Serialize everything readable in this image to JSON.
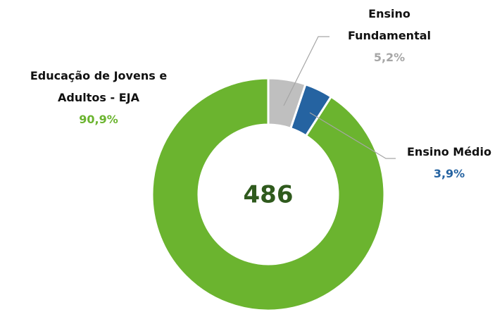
{
  "chart_data": {
    "type": "donut",
    "center_label": 486,
    "categories": [
      "Ensino Fundamental",
      "Ensino Médio",
      "Educação de Jovens e Adultos - EJA"
    ],
    "values": [
      5.2,
      3.9,
      90.9
    ],
    "value_labels": [
      "5,2%",
      "3,9%",
      "90,9%"
    ],
    "colors": [
      "#bfbfbf",
      "#2563a1",
      "#6bb42f"
    ],
    "label_colors": [
      "#a6a6a6",
      "#2563a1",
      "#6bb42f"
    ],
    "center_color": "#2f5a1d"
  }
}
